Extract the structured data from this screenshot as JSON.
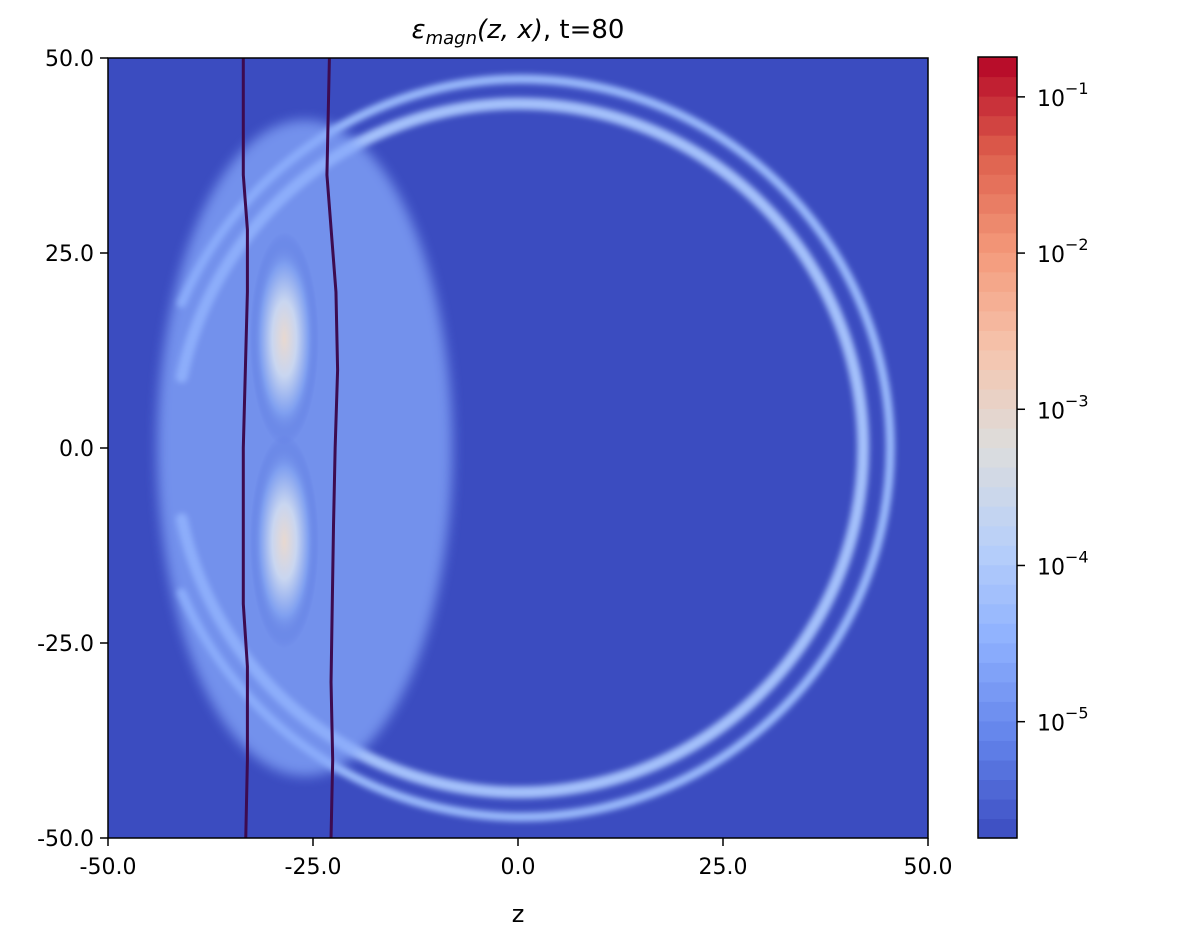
{
  "chart_data": {
    "type": "heatmap",
    "title": {
      "symbol": "ε",
      "subscript": "magn",
      "args": "(z, x)",
      "suffix": ", t=80"
    },
    "xlabel": "z",
    "ylabel": "",
    "xlim": [
      -50.0,
      50.0
    ],
    "ylim": [
      -50.0,
      50.0
    ],
    "x_ticks": [
      -50.0,
      -25.0,
      0.0,
      25.0,
      50.0
    ],
    "x_tick_labels": [
      "-50.0",
      "-25.0",
      "0.0",
      "25.0",
      "50.0"
    ],
    "y_ticks": [
      50.0,
      25.0,
      0.0,
      -25.0,
      -50.0
    ],
    "y_tick_labels": [
      "50.0",
      "25.0",
      "0.0",
      "-25.0",
      "-50.0"
    ],
    "colorbar": {
      "scale": "log",
      "colormap": "coolwarm",
      "range": [
        1.8e-06,
        0.18
      ],
      "ticks": [
        {
          "value": 0.1,
          "base": "10",
          "exp": "−1"
        },
        {
          "value": 0.01,
          "base": "10",
          "exp": "−2"
        },
        {
          "value": 0.001,
          "base": "10",
          "exp": "−3"
        },
        {
          "value": 0.0001,
          "base": "10",
          "exp": "−4"
        },
        {
          "value": 1e-05,
          "base": "10",
          "exp": "−5"
        }
      ]
    },
    "background_color": "#3b4cc0",
    "features": {
      "outer_ring": {
        "center": [
          0.0,
          0.0
        ],
        "radius": 45.0,
        "level": 5e-05,
        "z_min": -41.0
      },
      "inner_ring": {
        "center": [
          0.0,
          0.0
        ],
        "radius": 42.0,
        "level": 7e-05,
        "z_min": -41.0
      },
      "bright_lobes": [
        {
          "z": -28.5,
          "x": 14.0,
          "level": 0.0012
        },
        {
          "z": -28.5,
          "x": -12.0,
          "level": 0.001
        }
      ],
      "contour_lines": [
        {
          "color": "#3d0b4f",
          "z": [
            -33.5,
            -33.5,
            -33.0,
            -33.0,
            -33.5,
            -33.5,
            -33.0,
            -33.0,
            -33.2
          ],
          "x": [
            50.0,
            35.0,
            28.0,
            20.0,
            0.0,
            -20.0,
            -28.0,
            -40.0,
            -50.0
          ]
        },
        {
          "color": "#3d0b4f",
          "z": [
            -23.0,
            -23.3,
            -22.2,
            -22.0,
            -22.3,
            -22.5,
            -22.8,
            -22.6,
            -22.8
          ],
          "x": [
            50.0,
            35.0,
            20.0,
            10.0,
            0.0,
            -10.0,
            -30.0,
            -40.0,
            -50.0
          ]
        }
      ]
    }
  }
}
